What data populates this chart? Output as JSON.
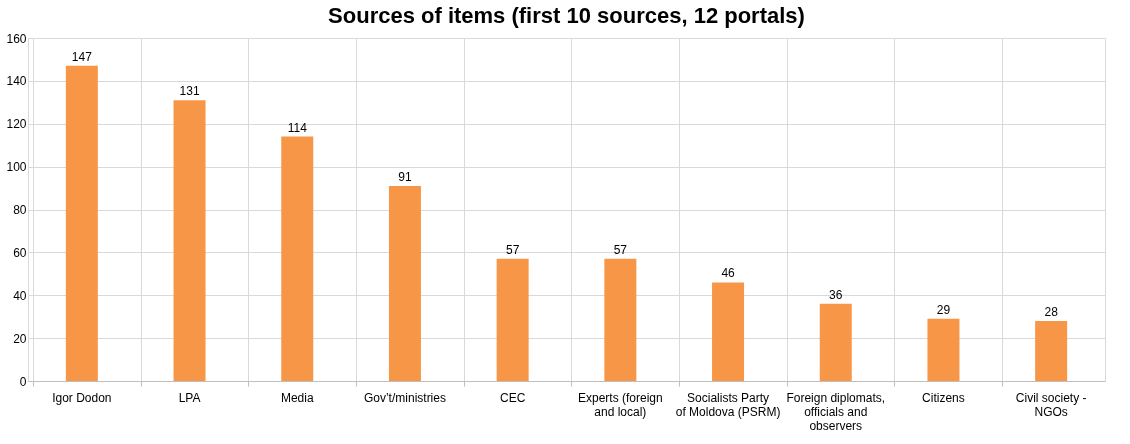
{
  "chart_data": {
    "type": "bar",
    "title": "Sources of items (first 10 sources, 12 portals)",
    "categories": [
      "Igor Dodon",
      "LPA",
      "Media",
      "Gov’t/ministries",
      "CEC",
      "Experts (foreign and local)",
      "Socialists Party of Moldova (PSRM)",
      "Foreign diplomats, officials and observers",
      "Citizens",
      "Civil society - NGOs"
    ],
    "values": [
      147,
      131,
      114,
      91,
      57,
      57,
      46,
      36,
      29,
      28
    ],
    "color": "#f79646",
    "ylim": [
      0,
      160
    ],
    "yticks": [
      0,
      20,
      40,
      60,
      80,
      100,
      120,
      140,
      160
    ],
    "grid": true,
    "data_labels": true
  }
}
